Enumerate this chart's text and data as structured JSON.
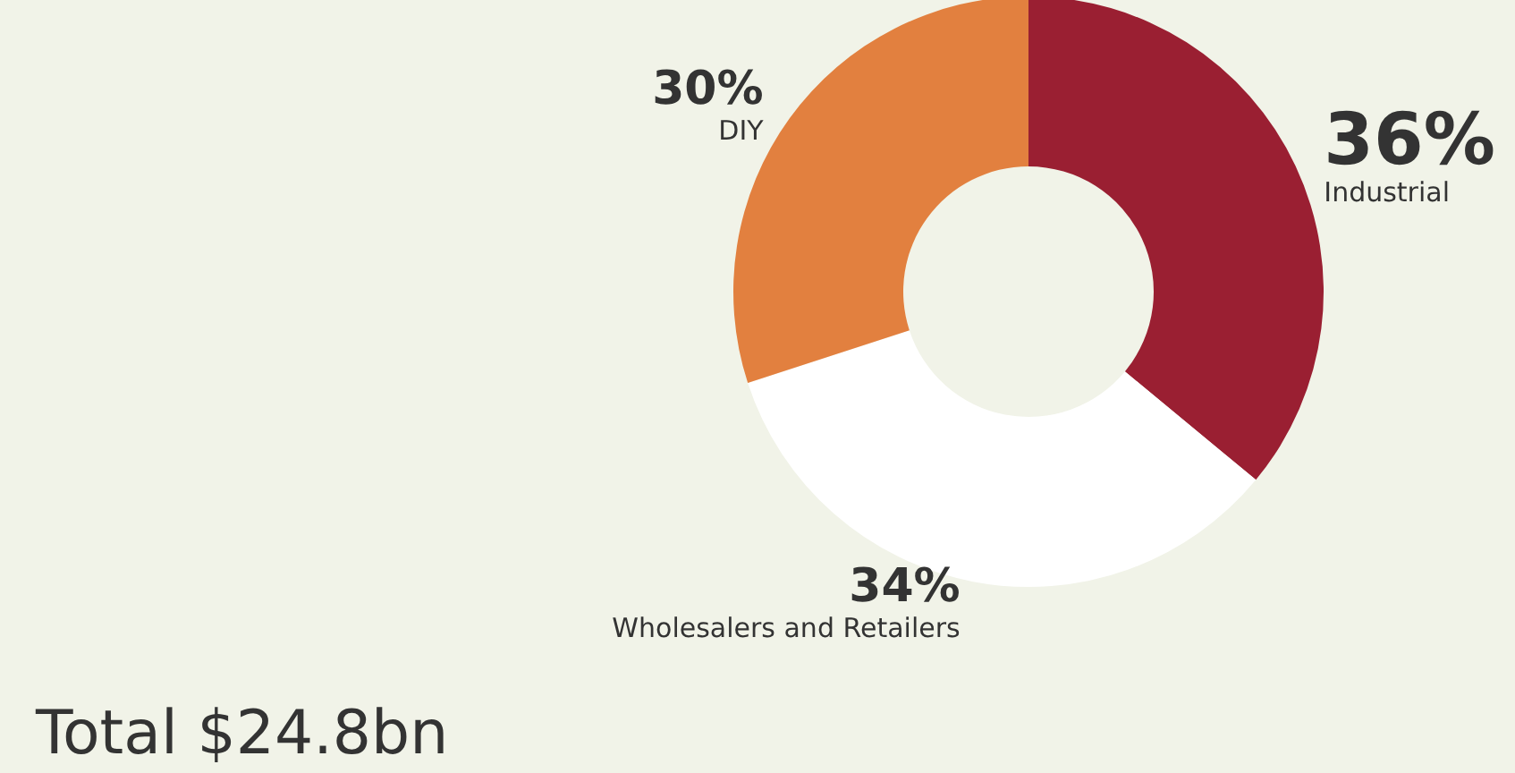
{
  "chart_data": {
    "type": "donut",
    "categories": [
      "Industrial",
      "Wholesalers and Retailers",
      "DIY"
    ],
    "values": [
      36,
      34,
      30
    ],
    "colors": [
      "#9a1f32",
      "#ffffff",
      "#e2803f"
    ],
    "value_labels": [
      "36%",
      "34%",
      "30%"
    ],
    "annotations": [
      "Total $24.8bn"
    ],
    "legend": false
  }
}
